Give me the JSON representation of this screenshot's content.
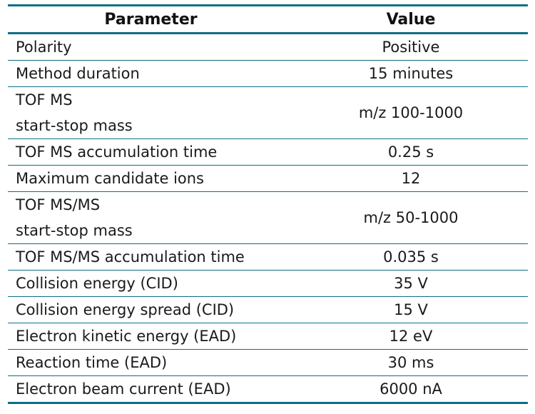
{
  "table": {
    "headers": {
      "parameter": "Parameter",
      "value": "Value"
    },
    "rows": [
      {
        "parameter": [
          "Polarity"
        ],
        "value": "Positive"
      },
      {
        "parameter": [
          "Method duration"
        ],
        "value": "15 minutes"
      },
      {
        "parameter": [
          "TOF MS",
          "start-stop mass"
        ],
        "value": "m/z 100-1000"
      },
      {
        "parameter": [
          "TOF MS accumulation time"
        ],
        "value": "0.25 s"
      },
      {
        "parameter": [
          "Maximum candidate ions"
        ],
        "value": "12"
      },
      {
        "parameter": [
          "TOF MS/MS",
          "start-stop mass"
        ],
        "value": "m/z 50-1000"
      },
      {
        "parameter": [
          "TOF MS/MS accumulation time"
        ],
        "value": "0.035 s"
      },
      {
        "parameter": [
          "Collision energy (CID)"
        ],
        "value": "35 V"
      },
      {
        "parameter": [
          "Collision energy spread (CID)"
        ],
        "value": "15 V"
      },
      {
        "parameter": [
          "Electron kinetic energy (EAD)"
        ],
        "value": "12 eV"
      },
      {
        "parameter": [
          "Reaction time (EAD)"
        ],
        "value": "30 ms"
      },
      {
        "parameter": [
          "Electron beam current (EAD)"
        ],
        "value": "6000 nA"
      }
    ]
  }
}
